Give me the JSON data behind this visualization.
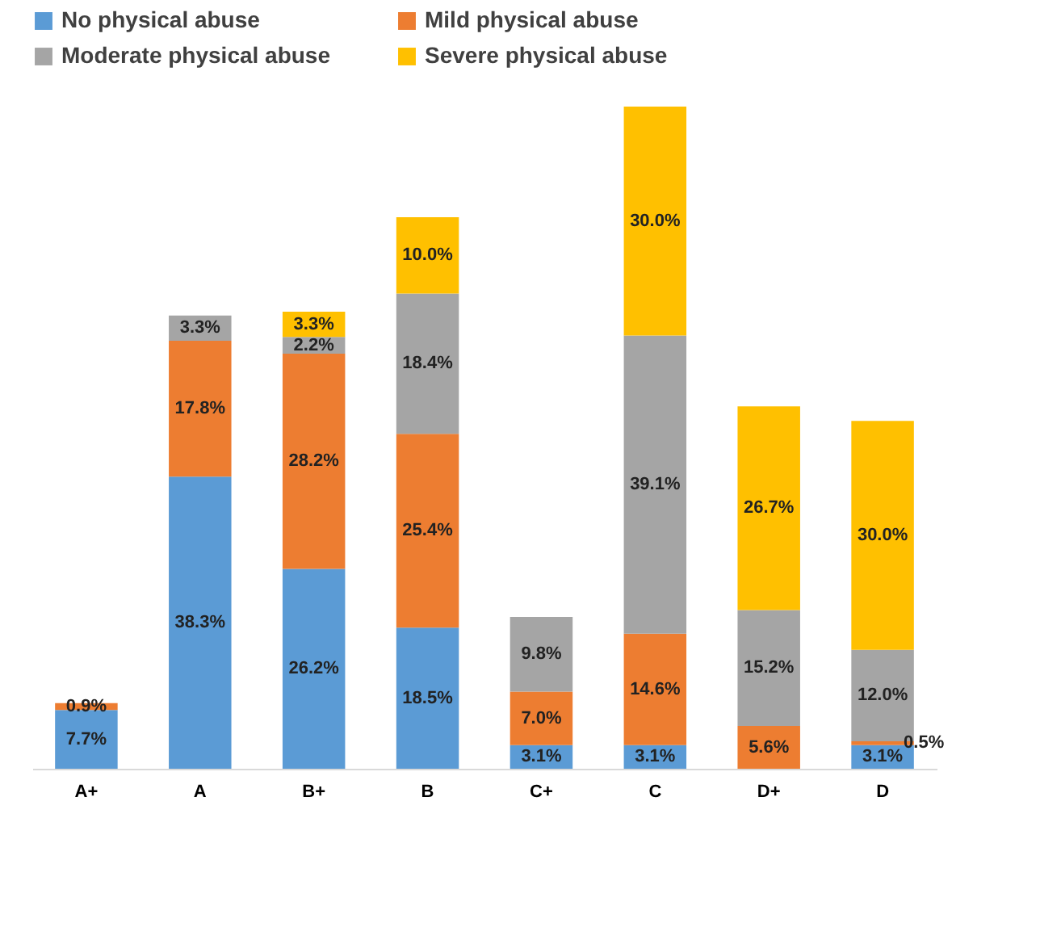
{
  "chart_data": {
    "type": "bar",
    "stacked": true,
    "tick_labels": "x",
    "legend": "top",
    "categories": [
      "A+",
      "A",
      "B+",
      "B",
      "C+",
      "C",
      "D+",
      "D"
    ],
    "series": [
      {
        "name": "No physical abuse",
        "color": "#5b9bd5",
        "values": [
          7.7,
          38.3,
          26.2,
          18.5,
          3.1,
          3.1,
          null,
          3.1
        ],
        "value_labels": [
          "7.7%",
          "38.3%",
          "26.2%",
          "18.5%",
          "3.1%",
          "3.1%",
          null,
          "3.1%"
        ]
      },
      {
        "name": "Mild physical abuse",
        "color": "#ed7d31",
        "values": [
          0.9,
          17.8,
          28.2,
          25.4,
          7.0,
          14.6,
          5.6,
          0.5
        ],
        "value_labels": [
          "0.9%",
          "17.8%",
          "28.2%",
          "25.4%",
          "7.0%",
          "14.6%",
          "5.6%",
          "0.5%"
        ]
      },
      {
        "name": "Moderate physical abuse",
        "color": "#a5a5a5",
        "values": [
          null,
          3.3,
          2.2,
          18.4,
          9.8,
          39.1,
          15.2,
          12.0
        ],
        "value_labels": [
          null,
          "3.3%",
          "2.2%",
          "18.4%",
          "9.8%",
          "39.1%",
          "15.2%",
          "12.0%"
        ]
      },
      {
        "name": "Severe physical abuse",
        "color": "#ffc000",
        "values": [
          null,
          null,
          3.3,
          10.0,
          null,
          30.0,
          26.7,
          30.0
        ],
        "value_labels": [
          null,
          null,
          "3.3%",
          "10.0%",
          null,
          "30.0%",
          "26.7%",
          "30.0%"
        ]
      }
    ]
  }
}
